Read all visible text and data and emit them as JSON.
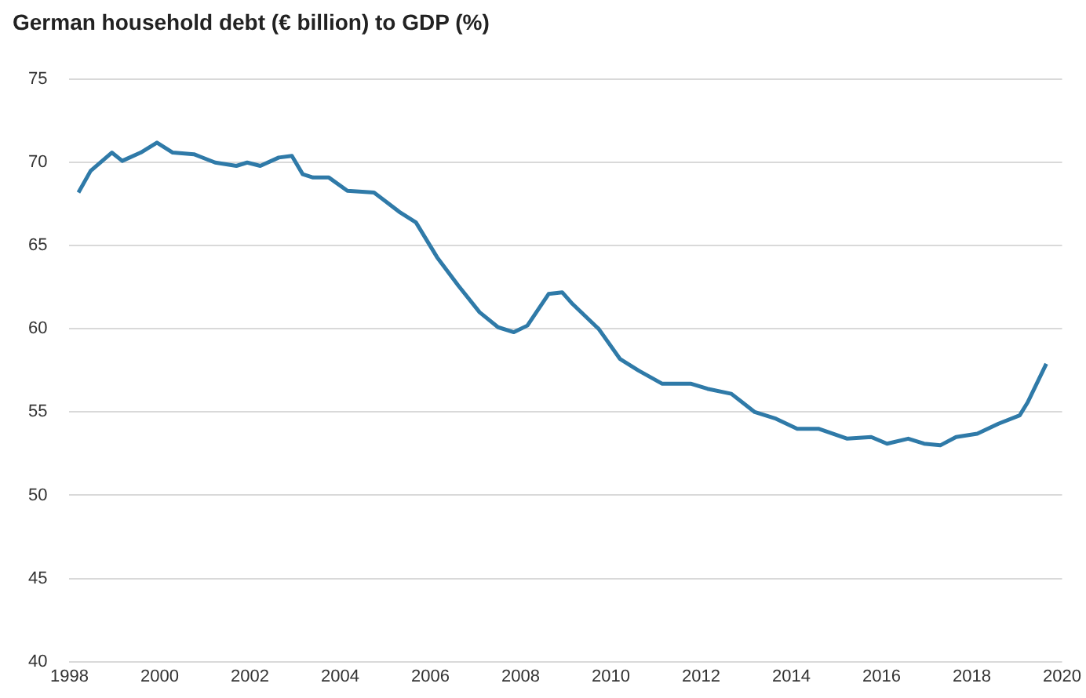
{
  "chart_data": {
    "type": "line",
    "title": "German household debt (€ billion) to GDP (%)",
    "x": [
      1998.2,
      1998.47,
      1998.94,
      1999.17,
      1999.58,
      1999.94,
      2000.29,
      2000.76,
      2001.23,
      2001.7,
      2001.94,
      2002.23,
      2002.64,
      2002.93,
      2003.17,
      2003.4,
      2003.75,
      2004.16,
      2004.75,
      2005.33,
      2005.68,
      2006.15,
      2006.62,
      2007.09,
      2007.5,
      2007.85,
      2008.15,
      2008.62,
      2008.92,
      2009.15,
      2009.73,
      2010.2,
      2010.61,
      2011.14,
      2011.78,
      2012.14,
      2012.67,
      2013.19,
      2013.66,
      2014.13,
      2014.6,
      2015.24,
      2015.77,
      2016.12,
      2016.59,
      2016.94,
      2017.3,
      2017.65,
      2018.12,
      2018.59,
      2019.06,
      2019.24,
      2019.65
    ],
    "series": [
      {
        "color": "#2f7aa8",
        "values": [
          68.2,
          69.5,
          70.6,
          70.1,
          70.6,
          71.2,
          70.6,
          70.5,
          70.0,
          69.8,
          70.0,
          69.8,
          70.3,
          70.4,
          69.3,
          69.1,
          69.1,
          68.3,
          68.2,
          67.0,
          66.4,
          64.3,
          62.6,
          61.0,
          60.1,
          59.8,
          60.2,
          62.1,
          62.2,
          61.5,
          60.0,
          58.2,
          57.5,
          56.7,
          56.7,
          56.4,
          56.1,
          55.0,
          54.6,
          54.0,
          54.0,
          53.4,
          53.5,
          53.1,
          53.4,
          53.1,
          53.0,
          53.5,
          53.7,
          54.3,
          54.8,
          55.6,
          57.9
        ]
      }
    ],
    "xlim": [
      1998,
      2020
    ],
    "xticks": [
      1998,
      2000,
      2002,
      2004,
      2006,
      2008,
      2010,
      2012,
      2014,
      2016,
      2018,
      2020
    ],
    "ylim": [
      40,
      75
    ],
    "yticks": [
      40,
      45,
      50,
      55,
      60,
      65,
      70,
      75
    ],
    "grid": "y",
    "legend": false,
    "marker": "none",
    "line_style": "solid"
  }
}
